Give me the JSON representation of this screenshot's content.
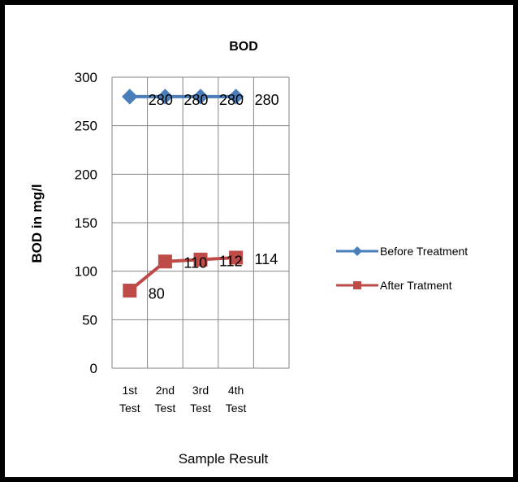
{
  "chart_data": {
    "type": "line",
    "title": "BOD",
    "xlabel": "Sample Result",
    "ylabel": "BOD in mg/l",
    "categories": [
      "1st Test",
      "2nd Test",
      "3rd Test",
      "4th Test"
    ],
    "ylim": [
      0,
      300
    ],
    "yticks": [
      0,
      50,
      100,
      150,
      200,
      250,
      300
    ],
    "grid": true,
    "legend_position": "right",
    "series": [
      {
        "name": "Before Treatment",
        "values": [
          280,
          280,
          280,
          280
        ],
        "color": "#4a7ebb",
        "marker": "diamond",
        "data_labels": [
          "280",
          "280",
          "280",
          "280"
        ]
      },
      {
        "name": "After Tratment",
        "values": [
          80,
          110,
          112,
          114
        ],
        "color": "#be4b48",
        "marker": "square",
        "data_labels": [
          "80",
          "110",
          "112",
          "114"
        ]
      }
    ]
  }
}
